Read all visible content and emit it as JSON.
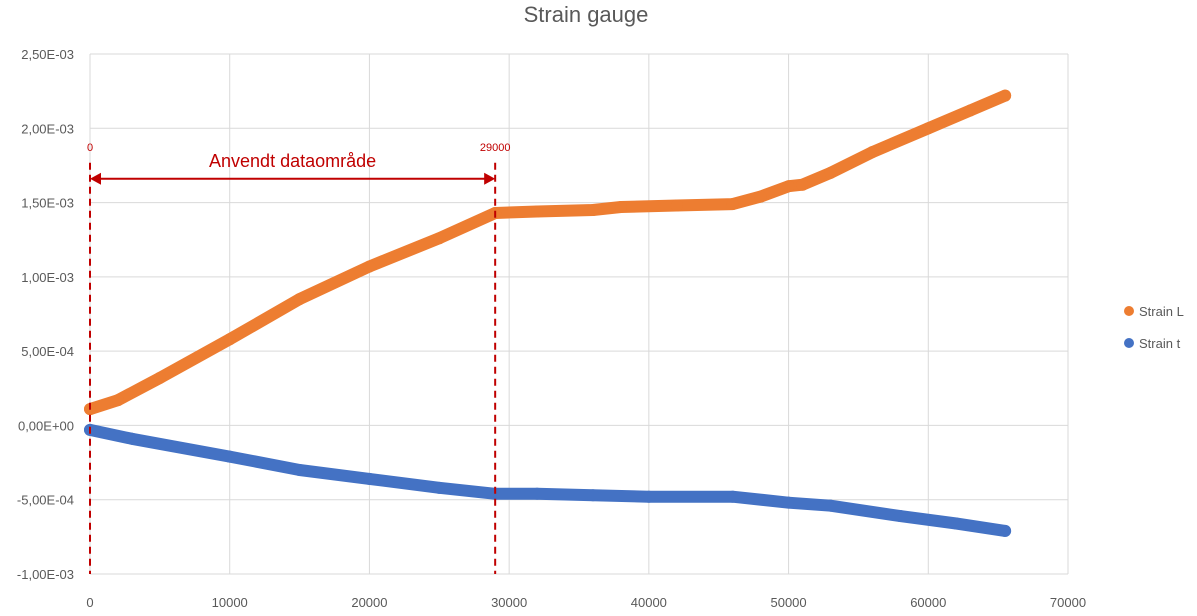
{
  "chart_data": {
    "type": "scatter",
    "title": "Strain gauge",
    "xlabel": "",
    "ylabel": "",
    "xlim": [
      0,
      70000
    ],
    "ylim": [
      -0.001,
      0.0025
    ],
    "x_ticks": [
      0,
      10000,
      20000,
      30000,
      40000,
      50000,
      60000,
      70000
    ],
    "x_tick_labels": [
      "0",
      "10000",
      "20000",
      "30000",
      "40000",
      "50000",
      "60000",
      "70000"
    ],
    "y_ticks": [
      -0.001,
      -0.0005,
      0,
      0.0005,
      0.001,
      0.0015,
      0.002,
      0.0025
    ],
    "y_tick_labels": [
      "-1,00E-03",
      "-5,00E-04",
      "0,00E+00",
      "5,00E-04",
      "1,00E-03",
      "1,50E-03",
      "2,00E-03",
      "2,50E-03"
    ],
    "grid": true,
    "legend_position": "right",
    "series": [
      {
        "name": "Strain L",
        "color": "#ed7d31",
        "points": [
          [
            0,
            0.00011
          ],
          [
            2000,
            0.00017
          ],
          [
            5000,
            0.00032
          ],
          [
            10000,
            0.00058
          ],
          [
            15000,
            0.00085
          ],
          [
            20000,
            0.00107
          ],
          [
            25000,
            0.00126
          ],
          [
            29000,
            0.00143
          ],
          [
            32000,
            0.00144
          ],
          [
            36000,
            0.00145
          ],
          [
            38000,
            0.00147
          ],
          [
            42000,
            0.00148
          ],
          [
            46000,
            0.00149
          ],
          [
            48000,
            0.00154
          ],
          [
            50000,
            0.00161
          ],
          [
            51000,
            0.00162
          ],
          [
            53000,
            0.0017
          ],
          [
            56000,
            0.00184
          ],
          [
            60000,
            0.002
          ],
          [
            63000,
            0.00212
          ],
          [
            65500,
            0.00222
          ]
        ]
      },
      {
        "name": "Strain t",
        "color": "#4472c4",
        "points": [
          [
            0,
            -3e-05
          ],
          [
            3000,
            -9e-05
          ],
          [
            10000,
            -0.00021
          ],
          [
            15000,
            -0.0003
          ],
          [
            20000,
            -0.00036
          ],
          [
            25000,
            -0.00042
          ],
          [
            29000,
            -0.00046
          ],
          [
            32000,
            -0.00046
          ],
          [
            36000,
            -0.00047
          ],
          [
            40000,
            -0.00048
          ],
          [
            46000,
            -0.00048
          ],
          [
            50000,
            -0.00052
          ],
          [
            53000,
            -0.00054
          ],
          [
            58000,
            -0.00061
          ],
          [
            62000,
            -0.00066
          ],
          [
            65500,
            -0.00071
          ]
        ]
      }
    ],
    "annotations": {
      "range_label": "Anvendt dataområde",
      "start_label": "0",
      "end_label": "29000",
      "start_x": 0,
      "end_x": 29000,
      "arrow_y": 0.00166,
      "color": "#c00000"
    }
  }
}
